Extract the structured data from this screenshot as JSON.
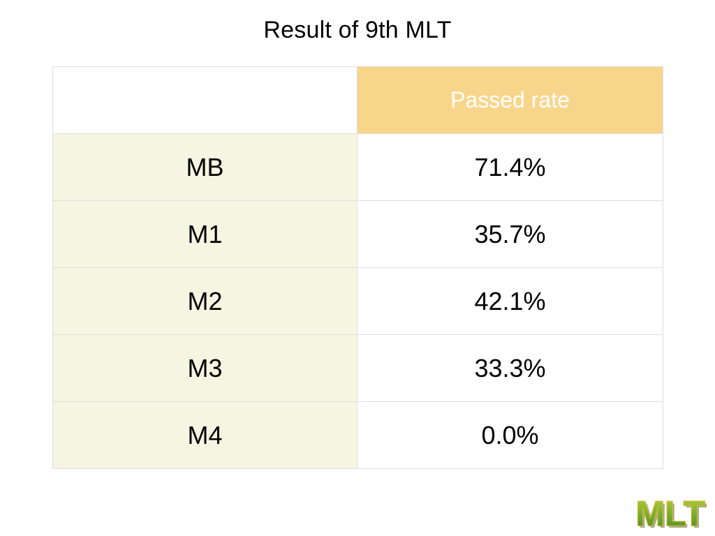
{
  "slide": {
    "title": "Result of 9th MLT"
  },
  "table": {
    "header": {
      "blank": "",
      "column": "Passed rate"
    },
    "rows": [
      {
        "label": "MB",
        "value": "71.4%"
      },
      {
        "label": "M1",
        "value": "35.7%"
      },
      {
        "label": "M2",
        "value": "42.1%"
      },
      {
        "label": "M3",
        "value": "33.3%"
      },
      {
        "label": "M4",
        "value": "0.0%"
      }
    ]
  },
  "logo": {
    "text": "MLT",
    "colors": {
      "fill_top": "#b9d23a",
      "fill_bottom": "#3f8c22",
      "outline": "#e8b83a",
      "shadow": "#5a5a2a"
    }
  },
  "colors": {
    "header_fill": "#f7d68b",
    "label_fill": "#f6f5e2",
    "grid": "#dedede"
  }
}
